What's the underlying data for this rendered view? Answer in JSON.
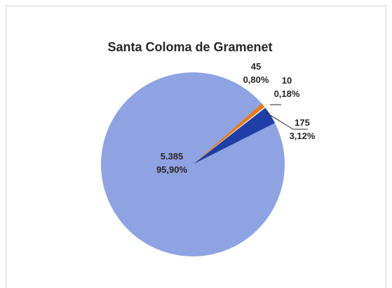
{
  "chart_data": {
    "type": "pie",
    "title": "Santa Coloma de Gramenet",
    "slices": [
      {
        "value": 5385,
        "value_label": "5.385",
        "percent_label": "95,90%",
        "color": "#8fa3e2"
      },
      {
        "value": 45,
        "value_label": "45",
        "percent_label": "0,80%",
        "color": "#e87a1e"
      },
      {
        "value": 10,
        "value_label": "10",
        "percent_label": "0,18%",
        "color": "#ffffff"
      },
      {
        "value": 175,
        "value_label": "175",
        "percent_label": "3,12%",
        "color": "#1f3ea6"
      }
    ],
    "legend": "none"
  }
}
